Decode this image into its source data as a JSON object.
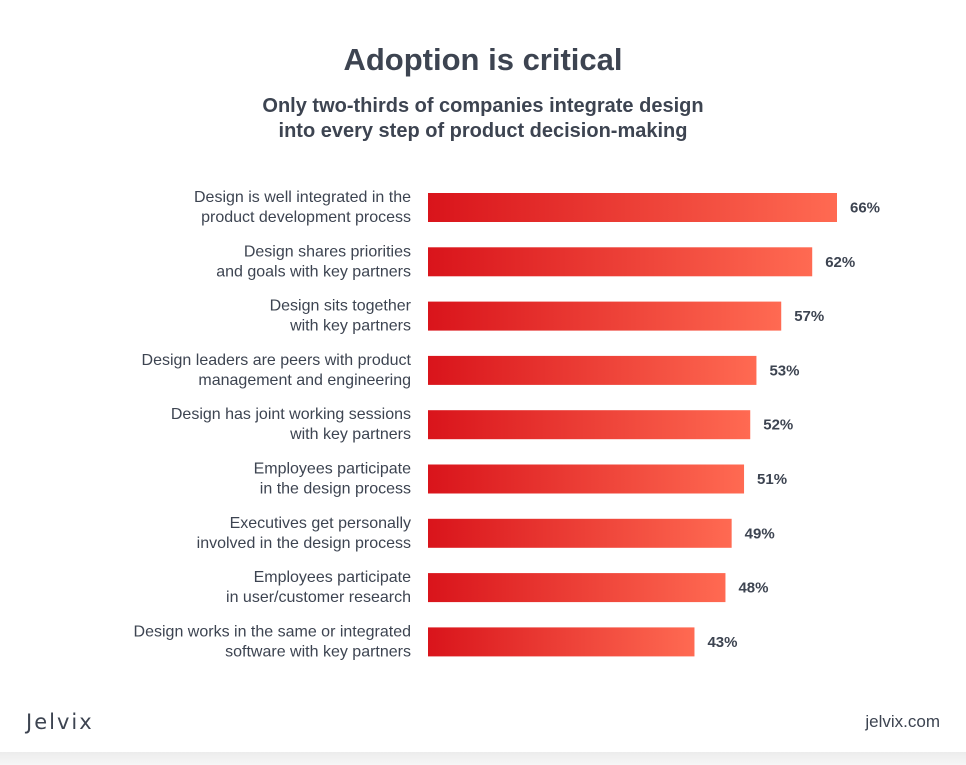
{
  "header": {
    "title": "Adoption is critical",
    "subtitle_line1": "Only two-thirds of companies integrate design",
    "subtitle_line2": "into every step of product decision-making"
  },
  "footer": {
    "brand": "Jelvix",
    "site": "jelvix.com"
  },
  "colors": {
    "bar_start": "#d9141b",
    "bar_end": "#ff6a52",
    "text": "#3d4451"
  },
  "chart_data": {
    "type": "bar",
    "orientation": "horizontal",
    "title": "Adoption is critical",
    "categories": [
      [
        "Design is well integrated in the",
        "product development process"
      ],
      [
        "Design shares priorities",
        "and goals with key partners"
      ],
      [
        "Design sits together",
        "with key partners"
      ],
      [
        "Design leaders are peers with product",
        "management and engineering"
      ],
      [
        "Design has joint working sessions",
        "with key partners"
      ],
      [
        "Employees participate",
        "in the design process"
      ],
      [
        "Executives get personally",
        "involved in the design process"
      ],
      [
        "Employees participate",
        "in user/customer research"
      ],
      [
        "Design works in the same or integrated",
        "software with key partners"
      ]
    ],
    "values": [
      66,
      62,
      57,
      53,
      52,
      51,
      49,
      48,
      43
    ],
    "value_labels": [
      "66%",
      "62%",
      "57%",
      "53%",
      "52%",
      "51%",
      "49%",
      "48%",
      "43%"
    ],
    "xlim": [
      0,
      66
    ],
    "grid": false
  }
}
